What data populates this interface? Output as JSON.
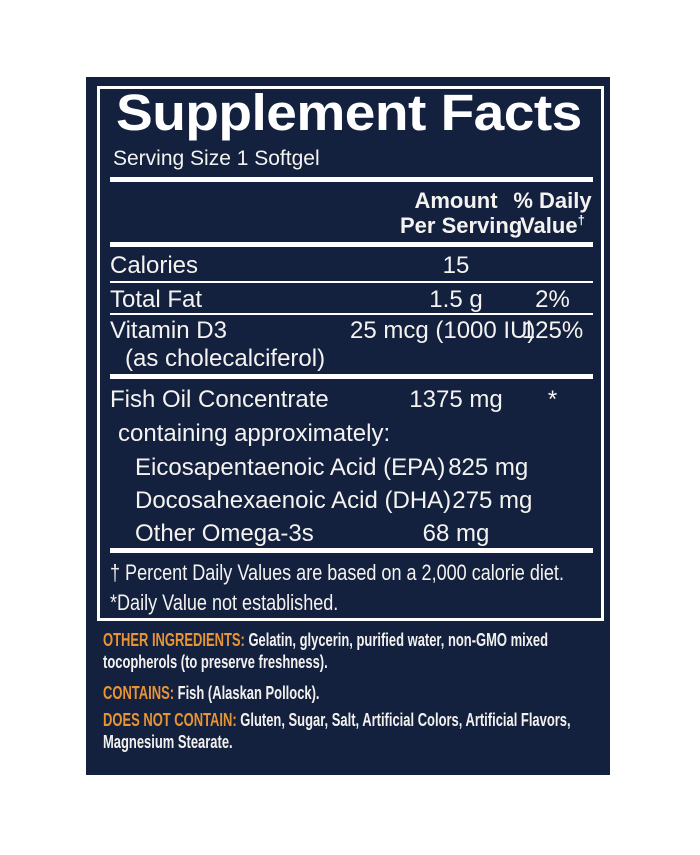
{
  "colors": {
    "panel_navy": "#13203e",
    "accent_orange": "#e89434",
    "text_white": "#f4f3f0",
    "rule_white": "#ffffff"
  },
  "facts": {
    "title": "Supplement Facts",
    "serving_size": "Serving Size 1 Softgel",
    "header": {
      "amount_line1": "Amount",
      "amount_line2": "Per Serving",
      "dv_line1": "% Daily",
      "dv_line2": "Value",
      "dv_dagger": "†"
    },
    "rows": [
      {
        "name": "Calories",
        "amount": "15",
        "dv": ""
      },
      {
        "name": "Total Fat",
        "amount": "1.5 g",
        "dv": "2%"
      },
      {
        "name": "Vitamin D3",
        "name_sub": "(as cholecalciferol)",
        "amount": "25 mcg (1000 IU)",
        "dv": "125%"
      },
      {
        "name": "Fish Oil Concentrate",
        "amount": "1375 mg",
        "dv": "*"
      }
    ],
    "containing_heading": "containing approximately:",
    "sub_rows": [
      {
        "name": "Eicosapentaenoic Acid (EPA)",
        "amount": "825 mg",
        "dv": ""
      },
      {
        "name": "Docosahexaenoic Acid (DHA)",
        "amount": "275 mg",
        "dv": ""
      },
      {
        "name": "Other Omega-3s",
        "amount": "68 mg",
        "dv": ""
      }
    ],
    "footnote_dagger": "† Percent Daily Values are based on a 2,000 calorie diet.",
    "footnote_asterisk": "*Daily Value not established."
  },
  "info": {
    "paragraphs": [
      {
        "label": "OTHER INGREDIENTS:",
        "text": "Gelatin, glycerin, purified water, non-GMO mixed\ntocopherols (to preserve freshness)."
      },
      {
        "label": "CONTAINS:",
        "text": "Fish (Alaskan Pollock)."
      },
      {
        "label": "DOES NOT CONTAIN:",
        "text": "Gluten, Sugar, Salt, Artificial Colors, Artificial Flavors,\nMagnesium Stearate."
      }
    ]
  }
}
